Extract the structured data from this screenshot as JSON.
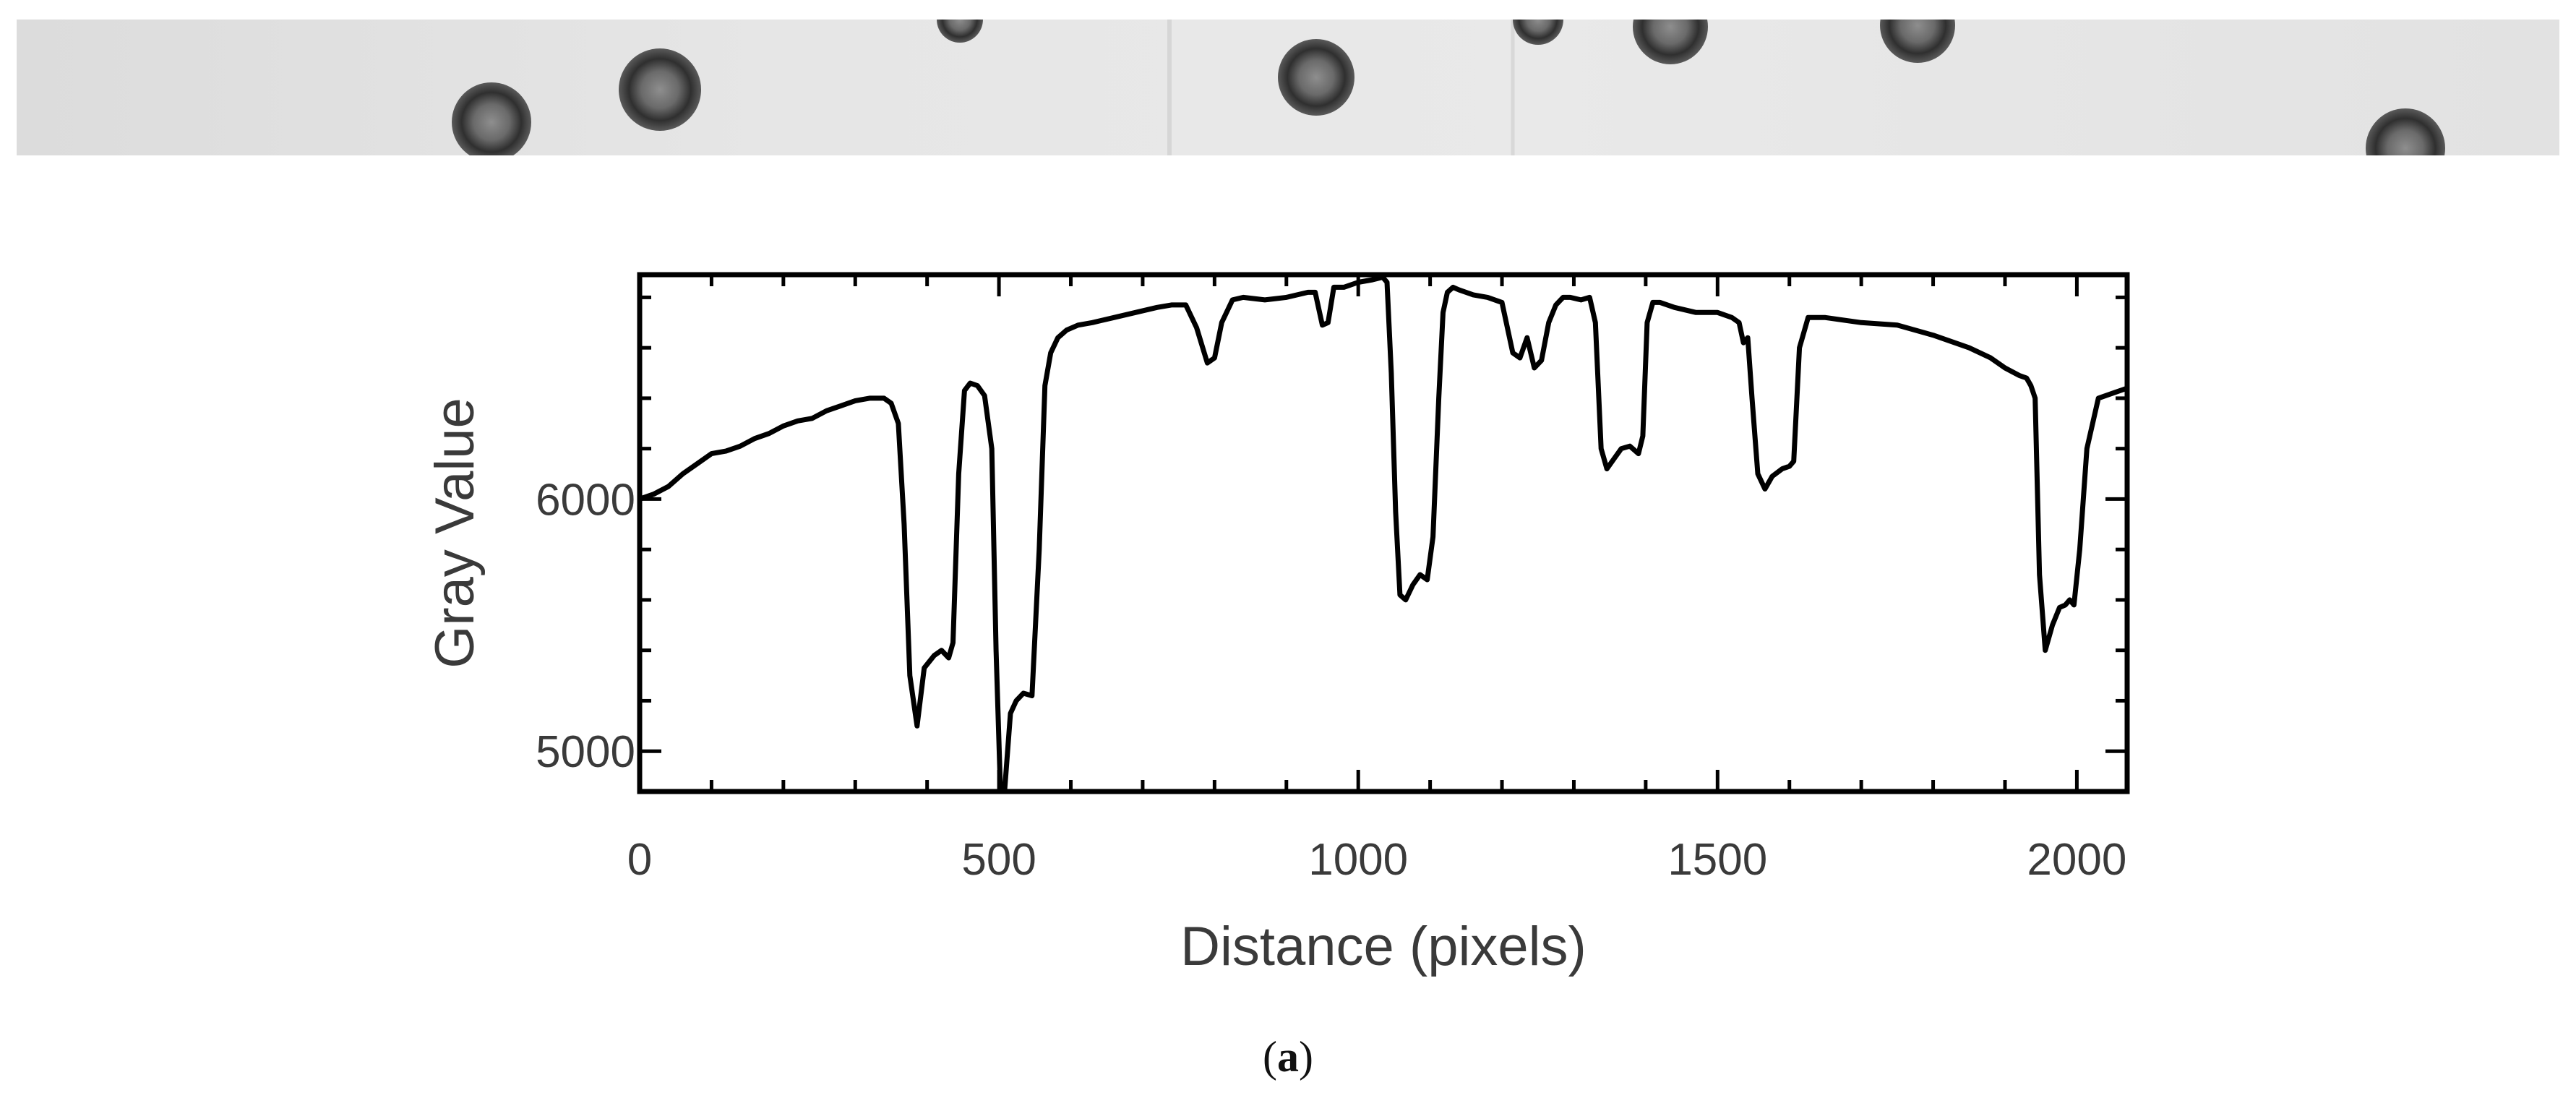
{
  "caption": {
    "open": "(",
    "letter": "a",
    "close": ")"
  },
  "photo": {
    "description_colors": {
      "background": "#e4e4e4",
      "particle": "#3c3c3c"
    }
  },
  "chart_data": {
    "type": "line",
    "xlabel": "Distance (pixels)",
    "ylabel": "Gray Value",
    "xlim": [
      0,
      2070
    ],
    "ylim": [
      4840,
      6890
    ],
    "xticks": [
      0,
      500,
      1000,
      1500,
      2000
    ],
    "yticks": [
      5000,
      6000
    ],
    "xtick_labels": [
      "0",
      "500",
      "1000",
      "1500",
      "2000"
    ],
    "ytick_labels": [
      "5000",
      "6000"
    ],
    "grid": false,
    "color": "#000000",
    "x": [
      0,
      20,
      40,
      60,
      80,
      100,
      120,
      140,
      160,
      180,
      200,
      220,
      240,
      260,
      280,
      300,
      320,
      340,
      350,
      360,
      368,
      376,
      386,
      396,
      410,
      420,
      430,
      436,
      444,
      452,
      460,
      470,
      480,
      490,
      496,
      502,
      508,
      516,
      524,
      534,
      546,
      556,
      564,
      572,
      582,
      594,
      610,
      630,
      660,
      690,
      720,
      740,
      760,
      775,
      790,
      800,
      810,
      825,
      840,
      870,
      900,
      930,
      940,
      950,
      958,
      966,
      980,
      1000,
      1020,
      1034,
      1040,
      1046,
      1052,
      1058,
      1066,
      1076,
      1086,
      1096,
      1104,
      1112,
      1118,
      1124,
      1132,
      1140,
      1160,
      1180,
      1200,
      1215,
      1225,
      1235,
      1245,
      1255,
      1265,
      1275,
      1285,
      1295,
      1310,
      1322,
      1330,
      1338,
      1346,
      1356,
      1366,
      1378,
      1390,
      1396,
      1402,
      1410,
      1420,
      1440,
      1470,
      1500,
      1520,
      1530,
      1536,
      1542,
      1548,
      1556,
      1566,
      1576,
      1590,
      1600,
      1606,
      1614,
      1626,
      1650,
      1700,
      1750,
      1800,
      1850,
      1880,
      1900,
      1920,
      1930,
      1936,
      1942,
      1948,
      1956,
      1966,
      1976,
      1984,
      1990,
      1996,
      2004,
      2014,
      2030,
      2050,
      2070
    ],
    "y": [
      6000,
      6020,
      6050,
      6100,
      6140,
      6180,
      6190,
      6210,
      6240,
      6260,
      6290,
      6310,
      6320,
      6350,
      6370,
      6390,
      6400,
      6400,
      6380,
      6300,
      5900,
      5300,
      5100,
      5330,
      5380,
      5400,
      5370,
      5430,
      6100,
      6430,
      6460,
      6450,
      6410,
      6200,
      5400,
      4850,
      4850,
      5150,
      5200,
      5230,
      5220,
      5800,
      6450,
      6580,
      6640,
      6670,
      6690,
      6700,
      6720,
      6740,
      6760,
      6770,
      6770,
      6680,
      6540,
      6560,
      6700,
      6790,
      6800,
      6790,
      6800,
      6820,
      6820,
      6690,
      6700,
      6840,
      6840,
      6860,
      6870,
      6880,
      6860,
      6500,
      5950,
      5620,
      5600,
      5660,
      5700,
      5680,
      5850,
      6400,
      6740,
      6820,
      6840,
      6830,
      6810,
      6800,
      6780,
      6580,
      6560,
      6640,
      6520,
      6550,
      6700,
      6770,
      6800,
      6800,
      6790,
      6800,
      6700,
      6200,
      6120,
      6160,
      6200,
      6210,
      6180,
      6250,
      6700,
      6780,
      6780,
      6760,
      6740,
      6740,
      6720,
      6700,
      6620,
      6640,
      6400,
      6100,
      6040,
      6090,
      6120,
      6130,
      6150,
      6600,
      6720,
      6720,
      6700,
      6690,
      6650,
      6600,
      6560,
      6520,
      6490,
      6480,
      6450,
      6400,
      5700,
      5400,
      5500,
      5570,
      5580,
      5600,
      5580,
      5800,
      6200,
      6400,
      6420,
      6440
    ]
  }
}
